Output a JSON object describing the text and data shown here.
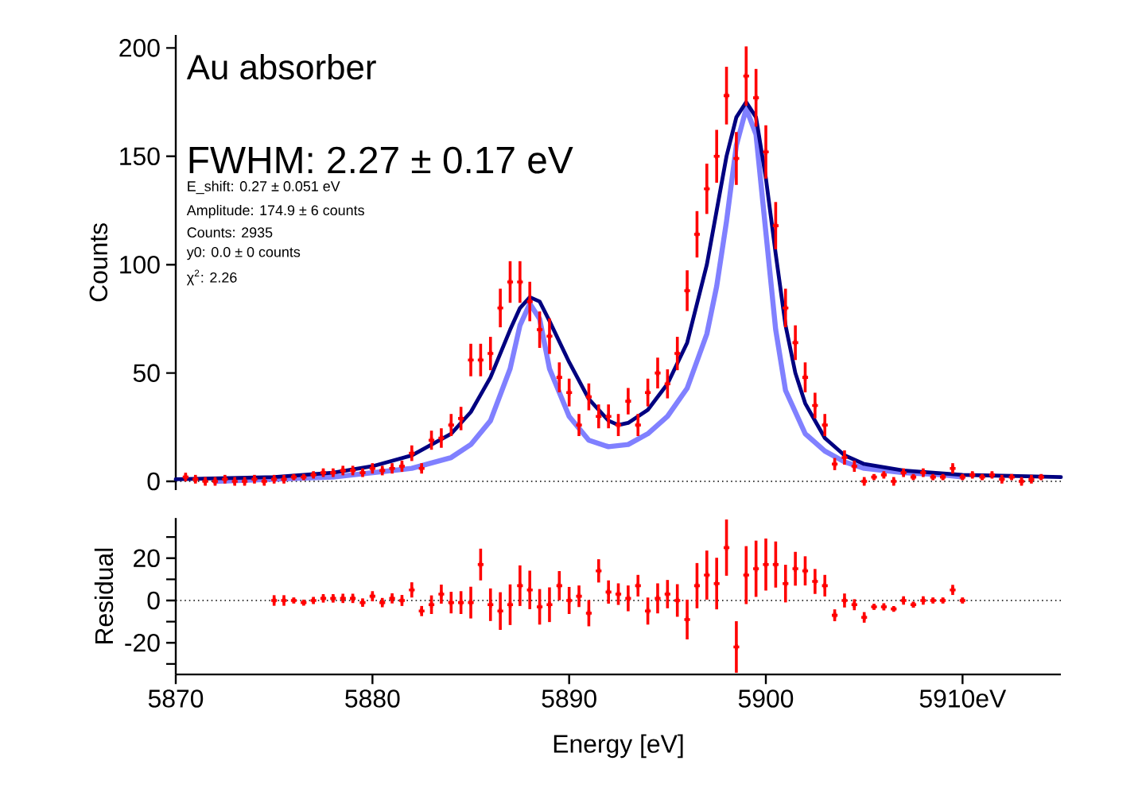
{
  "chart_data": [
    {
      "type": "scatter",
      "ylabel": "Counts",
      "xlim": [
        5870,
        5915
      ],
      "ylim": [
        -4,
        206
      ],
      "yticks": [
        0,
        50,
        100,
        150,
        200
      ],
      "tick_labels": "y",
      "annotations": [
        "Au absorber",
        "FWHM: 2.27 ± 0.17 eV",
        "E_shift: 0.27 ± 0.051 eV",
        "Amplitude: 174.9 ± 6 counts",
        "Counts: 2935",
        "y0: 0.0 ± 0 counts",
        "χ$^{2}$: 2.26"
      ],
      "ref_lines": [
        {
          "axis": "y",
          "value": 0,
          "color": "#000000",
          "line_style": "dotted"
        }
      ],
      "series": [
        {
          "type": "line",
          "color": "#8080ff",
          "marker": "none",
          "x": [
            5872,
            5878,
            5882,
            5884,
            5885,
            5886,
            5887,
            5887.5,
            5888,
            5888.5,
            5889,
            5890,
            5891,
            5892,
            5893,
            5894,
            5895,
            5896,
            5897,
            5897.5,
            5898,
            5898.5,
            5899,
            5899.5,
            5900,
            5900.5,
            5901,
            5902,
            5903,
            5904,
            5905,
            5907,
            5909,
            5910
          ],
          "values": [
            0,
            2,
            6,
            11,
            17,
            28,
            52,
            72,
            82,
            75,
            52,
            30,
            19,
            16,
            17,
            22,
            30,
            43,
            68,
            90,
            120,
            155,
            172,
            160,
            115,
            70,
            42,
            22,
            14,
            9,
            6,
            4,
            3,
            2
          ]
        },
        {
          "type": "line",
          "color": "#000080",
          "marker": "none",
          "x": [
            5870,
            5875,
            5878,
            5880,
            5882,
            5884,
            5885,
            5886,
            5887,
            5887.5,
            5888,
            5888.5,
            5889,
            5890,
            5891,
            5892,
            5892.5,
            5893,
            5894,
            5895,
            5896,
            5897,
            5897.5,
            5898,
            5898.5,
            5899,
            5899.5,
            5900,
            5900.5,
            5901,
            5901.5,
            5902,
            5903,
            5904,
            5905,
            5907,
            5910,
            5915
          ],
          "values": [
            1,
            2,
            4,
            7,
            12,
            22,
            32,
            48,
            70,
            80,
            85,
            83,
            74,
            55,
            38,
            28,
            26,
            27,
            33,
            45,
            64,
            100,
            125,
            150,
            168,
            175,
            168,
            140,
            105,
            72,
            50,
            36,
            20,
            12,
            8,
            5,
            3,
            2
          ]
        },
        {
          "color": "#ff0000",
          "marker": "cross",
          "x": [
            5870.5,
            5871,
            5871.5,
            5872,
            5872.5,
            5873,
            5873.5,
            5874,
            5874.5,
            5875,
            5875.5,
            5876,
            5876.5,
            5877,
            5877.5,
            5878,
            5878.5,
            5879,
            5879.5,
            5880,
            5880.5,
            5881,
            5881.5,
            5882,
            5882.5,
            5883,
            5883.5,
            5884,
            5884.5,
            5885,
            5885.5,
            5886,
            5886.5,
            5887,
            5887.5,
            5888,
            5888.5,
            5889,
            5889.5,
            5890,
            5890.5,
            5891,
            5891.5,
            5892,
            5892.5,
            5893,
            5893.5,
            5894,
            5894.5,
            5895,
            5895.5,
            5896,
            5896.5,
            5897,
            5897.5,
            5898,
            5898.5,
            5899,
            5899.5,
            5900,
            5900.5,
            5901,
            5901.5,
            5902,
            5902.5,
            5903,
            5903.5,
            5904,
            5904.5,
            5905,
            5905.5,
            5906,
            5906.5,
            5907,
            5907.5,
            5908,
            5908.5,
            5909,
            5909.5,
            5910,
            5910.5,
            5911,
            5911.5,
            5912,
            5912.5,
            5913,
            5913.5,
            5914
          ],
          "values": [
            2,
            1,
            0,
            0,
            1,
            0,
            0,
            1,
            0,
            1,
            1,
            2,
            2,
            3,
            4,
            4,
            5,
            5,
            4,
            6,
            5,
            6,
            7,
            13,
            6,
            19,
            20,
            26,
            29,
            56,
            56,
            59,
            80,
            92,
            92,
            83,
            70,
            67,
            48,
            41,
            26,
            39,
            30,
            30,
            26,
            37,
            26,
            41,
            50,
            45,
            59,
            88,
            114,
            135,
            150,
            178,
            149,
            187,
            177,
            152,
            118,
            80,
            64,
            48,
            35,
            26,
            8,
            11,
            7,
            0,
            2,
            3,
            0,
            4,
            2,
            4,
            2,
            2,
            6,
            2,
            3,
            2,
            3,
            1,
            2,
            0,
            1,
            2
          ],
          "errors": [
            2,
            2,
            2,
            2,
            2,
            2,
            2,
            2,
            2,
            2,
            2,
            1.4,
            1.4,
            1.7,
            2,
            2,
            2.2,
            2.2,
            2,
            2.4,
            2.2,
            2.4,
            2.6,
            3.6,
            2.4,
            4.4,
            4.5,
            5.1,
            5.4,
            7.5,
            7.5,
            7.7,
            8.9,
            9.6,
            9.6,
            9.1,
            8.4,
            8.2,
            6.9,
            6.4,
            5.1,
            6.2,
            5.5,
            5.5,
            5.1,
            6.1,
            5.1,
            6.4,
            7.1,
            6.7,
            7.7,
            9.4,
            10.7,
            11.6,
            12.2,
            13.3,
            12.2,
            13.7,
            13.3,
            12.3,
            10.9,
            8.9,
            8,
            6.9,
            5.9,
            5.1,
            2.8,
            3.3,
            2.6,
            2,
            1.4,
            1.7,
            2,
            2,
            1.4,
            2,
            1.4,
            1.4,
            2.4,
            1.4,
            1.7,
            1.4,
            1.7,
            2,
            1.4,
            2,
            2,
            1.4
          ]
        }
      ]
    },
    {
      "type": "scatter",
      "ylabel": "Residual",
      "xlabel": "Energy [eV]",
      "xlim": [
        5870,
        5915
      ],
      "ylim": [
        -35,
        39
      ],
      "xticks": [
        5870,
        5880,
        5890,
        5900,
        {
          "value": 5910,
          "label": "5910eV"
        }
      ],
      "yticks": [
        {
          "value": -30,
          "label": null
        },
        -20,
        {
          "value": -10,
          "label": null
        },
        0,
        {
          "value": 10,
          "label": null
        },
        20,
        {
          "value": 30,
          "label": null
        }
      ],
      "ref_lines": [
        {
          "axis": "y",
          "value": 0,
          "color": "#000000",
          "line_style": "dotted"
        }
      ],
      "series": [
        {
          "color": "#ff0000",
          "marker": "cross",
          "x": [
            5875,
            5875.5,
            5876,
            5876.5,
            5877,
            5877.5,
            5878,
            5878.5,
            5879,
            5879.5,
            5880,
            5880.5,
            5881,
            5881.5,
            5882,
            5882.5,
            5883,
            5883.5,
            5884,
            5884.5,
            5885,
            5885.5,
            5886,
            5886.5,
            5887,
            5887.5,
            5888,
            5888.5,
            5889,
            5889.5,
            5890,
            5890.5,
            5891,
            5891.5,
            5892,
            5892.5,
            5893,
            5893.5,
            5894,
            5894.5,
            5895,
            5895.5,
            5896,
            5896.5,
            5897,
            5897.5,
            5898,
            5898.5,
            5899,
            5899.5,
            5900,
            5900.5,
            5901,
            5901.5,
            5902,
            5902.5,
            5903,
            5903.5,
            5904,
            5904.5,
            5905,
            5905.5,
            5906,
            5906.5,
            5907,
            5907.5,
            5908,
            5908.5,
            5909,
            5909.5,
            5910
          ],
          "values": [
            0,
            0,
            0,
            -1,
            0,
            1,
            1,
            1,
            1,
            -1,
            2,
            -1,
            1,
            0,
            5,
            -5,
            -2,
            3,
            -1,
            -1,
            -1,
            17,
            -2,
            -5,
            -2,
            7,
            5,
            -3,
            -2,
            7,
            0,
            2,
            -6,
            14,
            4,
            3,
            1,
            7,
            -5,
            1,
            3,
            0,
            -9,
            7,
            12,
            8,
            25,
            -22,
            12,
            15,
            17,
            17,
            8,
            15,
            14,
            9,
            7,
            -7,
            0,
            -2,
            -8,
            -3,
            -3,
            -4,
            0,
            -2,
            0,
            0,
            0,
            5,
            0
          ],
          "errors": [
            2.5,
            2.5,
            1.4,
            1.4,
            1.7,
            2,
            2,
            2.2,
            2.2,
            2,
            2.4,
            2.2,
            2.4,
            2.6,
            3.6,
            2.4,
            4.4,
            4.5,
            5.1,
            5.4,
            7.5,
            7.5,
            7.7,
            8.9,
            9.6,
            9.6,
            9.1,
            8.4,
            8.2,
            6.9,
            6.4,
            5.1,
            6.2,
            5.5,
            5.5,
            5.1,
            6.1,
            5.1,
            6.4,
            7.1,
            6.7,
            7.7,
            9.4,
            10.7,
            11.6,
            12.2,
            13.3,
            12.2,
            13.7,
            13.3,
            12.3,
            10.9,
            8.9,
            8,
            6.9,
            5.9,
            5.1,
            2.8,
            3.3,
            2.6,
            2.5,
            1.4,
            1.7,
            1,
            2,
            1.4,
            2,
            1.4,
            1.4,
            2.4,
            1.4
          ]
        }
      ]
    }
  ]
}
